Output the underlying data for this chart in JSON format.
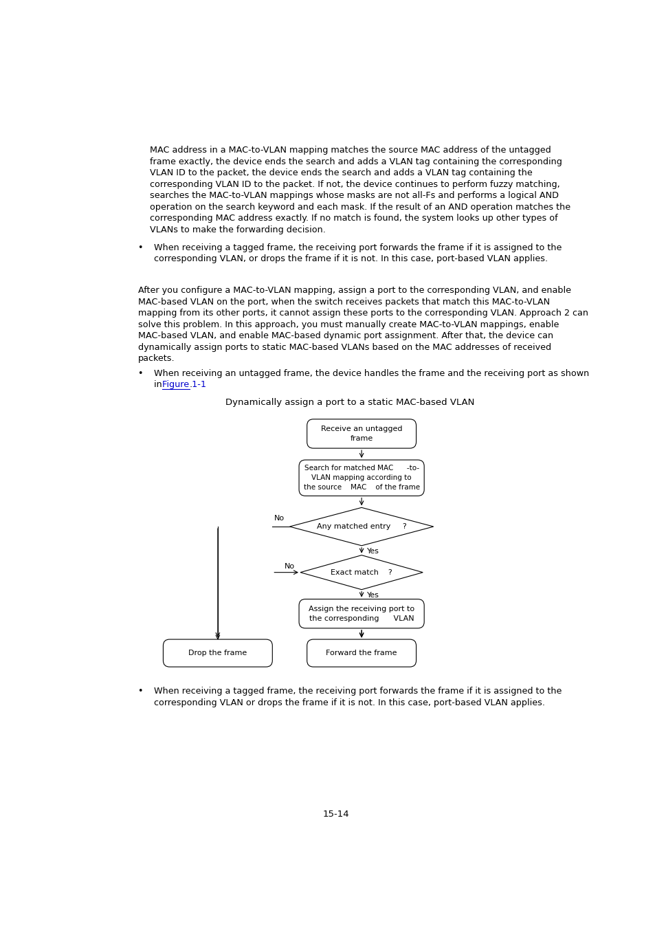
{
  "bg_color": "#ffffff",
  "text_color": "#000000",
  "link_color": "#0000cd",
  "page_number": "15-14",
  "paragraph1_lines": [
    "MAC address in a MAC-to-VLAN mapping matches the source MAC address of the untagged",
    "frame exactly, the device ends the search and adds a VLAN tag containing the corresponding",
    "VLAN ID to the packet, the device ends the search and adds a VLAN tag containing the",
    "corresponding VLAN ID to the packet. If not, the device continues to perform fuzzy matching,",
    "searches the MAC-to-VLAN mappings whose masks are not all-Fs and performs a logical AND",
    "operation on the search keyword and each mask. If the result of an AND operation matches the",
    "corresponding MAC address exactly. If no match is found, the system looks up other types of",
    "VLANs to make the forwarding decision."
  ],
  "bullet1_lines": [
    "When receiving a tagged frame, the receiving port forwards the frame if it is assigned to the",
    "corresponding VLAN, or drops the frame if it is not. In this case, port-based VLAN applies."
  ],
  "paragraph2_lines": [
    "After you configure a MAC-to-VLAN mapping, assign a port to the corresponding VLAN, and enable",
    "MAC-based VLAN on the port, when the switch receives packets that match this MAC-to-VLAN",
    "mapping from its other ports, it cannot assign these ports to the corresponding VLAN. Approach 2 can",
    "solve this problem. In this approach, you must manually create MAC-to-VLAN mappings, enable",
    "MAC-based VLAN, and enable MAC-based dynamic port assignment. After that, the device can",
    "dynamically assign ports to static MAC-based VLANs based on the MAC addresses of received",
    "packets."
  ],
  "bullet2_line1": "When receiving an untagged frame, the device handles the frame and the receiving port as shown",
  "bullet2_line2_pre": "in ",
  "bullet2_line2_link": "Figure 1-1",
  "bullet2_line2_post": ".",
  "figure_caption": "Dynamically assign a port to a static MAC-based VLAN",
  "box1_text": "Receive an untagged\nframe",
  "box2_text": "Search for matched MAC      -to-\nVLAN mapping according to\nthe source    MAC    of the frame",
  "diamond1_text": "Any matched entry     ?",
  "diamond2_text": "Exact match    ?",
  "box3_text": "Assign the receiving port to\nthe corresponding      VLAN",
  "box4_text": "Drop the frame",
  "box5_text": "Forward the frame",
  "label_no1": "No",
  "label_yes1": "Yes",
  "label_no2": "No",
  "label_yes2": "Yes",
  "bullet3_lines": [
    "When receiving a tagged frame, the receiving port forwards the frame if it is assigned to the",
    "corresponding VLAN or drops the frame if it is not. In this case, port-based VLAN applies."
  ],
  "font_size_body": 9.2,
  "font_size_caption": 9.5,
  "font_size_box": 8.0,
  "font_size_page": 9.5
}
